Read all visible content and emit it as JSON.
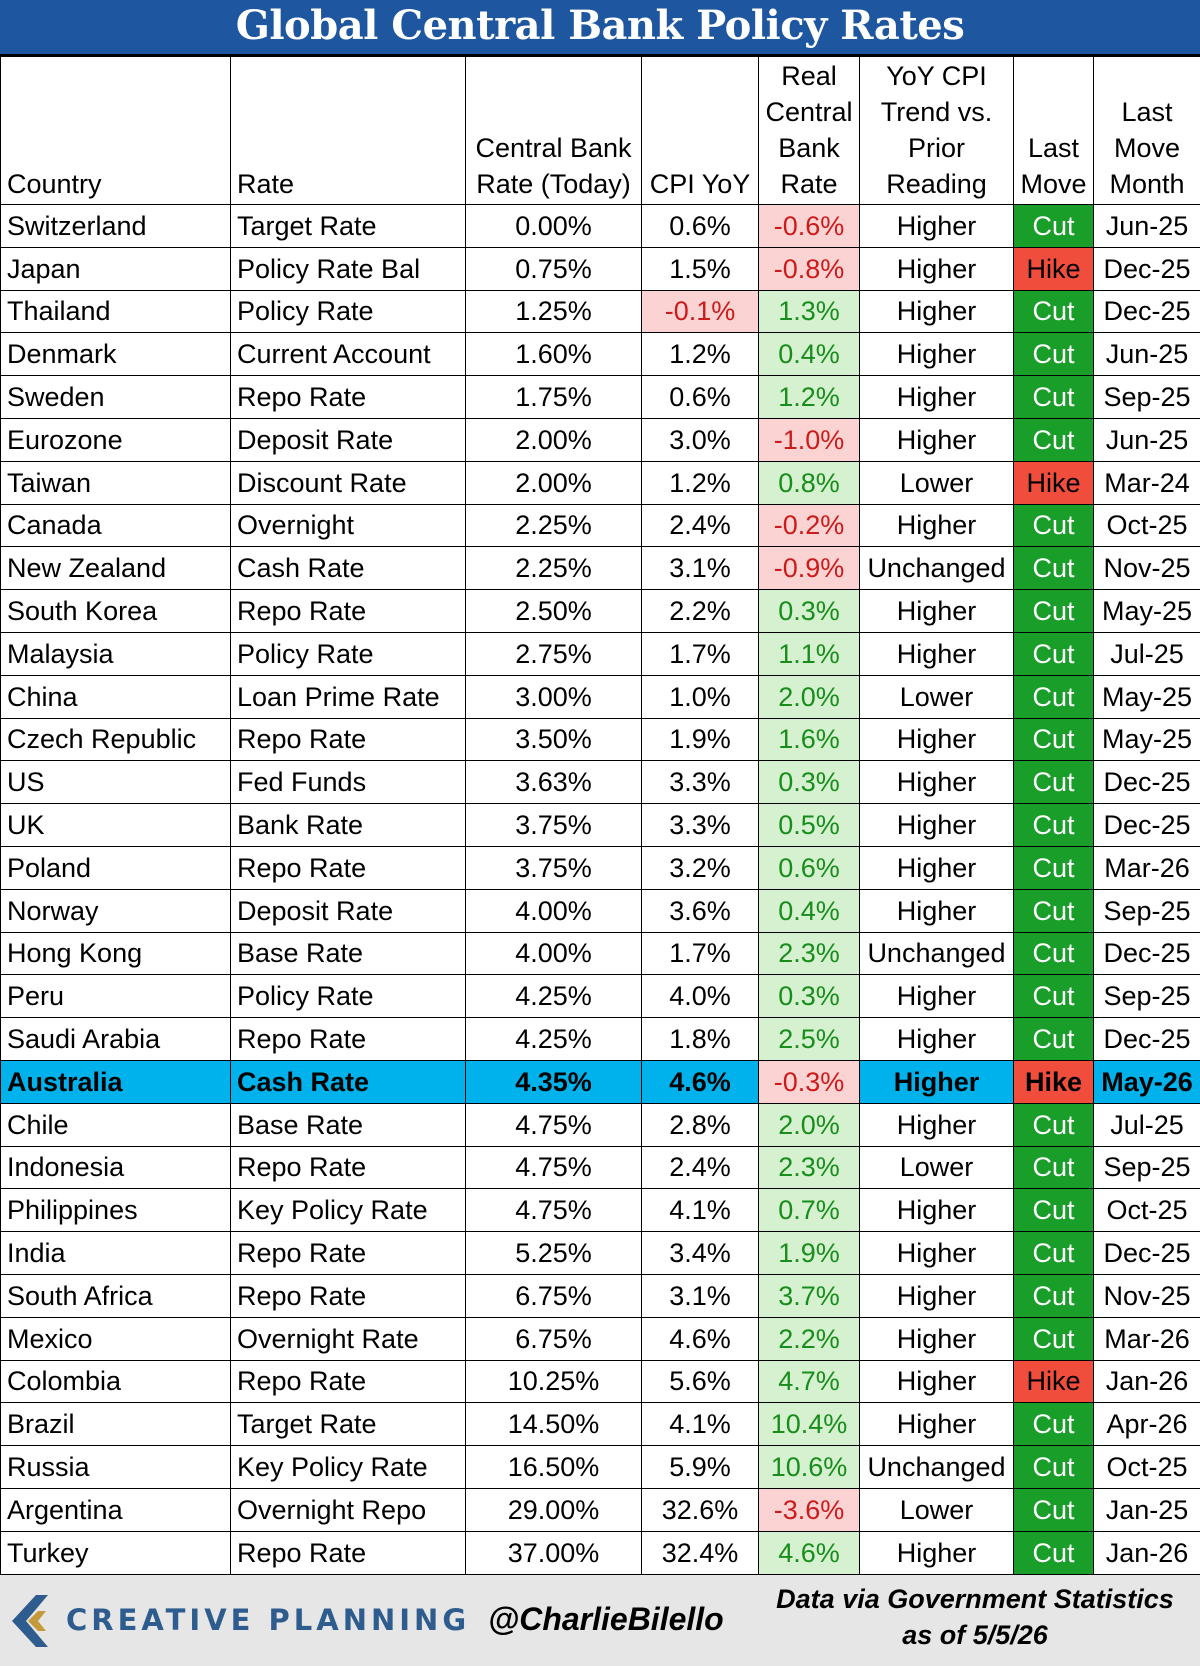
{
  "chart_data": {
    "type": "table",
    "title": "Global Central Bank Policy Rates",
    "columns": [
      "Country",
      "Rate",
      "Central Bank Rate (Today)",
      "CPI YoY",
      "Real Central Bank Rate",
      "YoY CPI Trend vs. Prior Reading",
      "Last Move",
      "Last Move Month"
    ],
    "highlight_country": "Australia",
    "colors": {
      "title_bg": "#1e57a0",
      "highlight_row": "#00b2eb",
      "negative_bg": "#fbd3d3",
      "negative_text": "#cc1b1b",
      "positive_bg": "#d5f1d0",
      "positive_text": "#198d1c",
      "cut": "#1a9e2a",
      "hike": "#f04d3d"
    },
    "rows": [
      {
        "country": "Switzerland",
        "rate": "Target Rate",
        "cb_rate": "0.00%",
        "cpi_yoy": "0.6%",
        "real_rate": "-0.6%",
        "trend": "Higher",
        "last_move": "Cut",
        "month": "Jun-25"
      },
      {
        "country": "Japan",
        "rate": "Policy Rate Bal",
        "cb_rate": "0.75%",
        "cpi_yoy": "1.5%",
        "real_rate": "-0.8%",
        "trend": "Higher",
        "last_move": "Hike",
        "month": "Dec-25"
      },
      {
        "country": "Thailand",
        "rate": "Policy Rate",
        "cb_rate": "1.25%",
        "cpi_yoy": "-0.1%",
        "real_rate": "1.3%",
        "trend": "Higher",
        "last_move": "Cut",
        "month": "Dec-25"
      },
      {
        "country": "Denmark",
        "rate": "Current Account",
        "cb_rate": "1.60%",
        "cpi_yoy": "1.2%",
        "real_rate": "0.4%",
        "trend": "Higher",
        "last_move": "Cut",
        "month": "Jun-25"
      },
      {
        "country": "Sweden",
        "rate": "Repo Rate",
        "cb_rate": "1.75%",
        "cpi_yoy": "0.6%",
        "real_rate": "1.2%",
        "trend": "Higher",
        "last_move": "Cut",
        "month": "Sep-25"
      },
      {
        "country": "Eurozone",
        "rate": "Deposit Rate",
        "cb_rate": "2.00%",
        "cpi_yoy": "3.0%",
        "real_rate": "-1.0%",
        "trend": "Higher",
        "last_move": "Cut",
        "month": "Jun-25"
      },
      {
        "country": "Taiwan",
        "rate": "Discount Rate",
        "cb_rate": "2.00%",
        "cpi_yoy": "1.2%",
        "real_rate": "0.8%",
        "trend": "Lower",
        "last_move": "Hike",
        "month": "Mar-24"
      },
      {
        "country": "Canada",
        "rate": "Overnight",
        "cb_rate": "2.25%",
        "cpi_yoy": "2.4%",
        "real_rate": "-0.2%",
        "trend": "Higher",
        "last_move": "Cut",
        "month": "Oct-25"
      },
      {
        "country": "New Zealand",
        "rate": "Cash Rate",
        "cb_rate": "2.25%",
        "cpi_yoy": "3.1%",
        "real_rate": "-0.9%",
        "trend": "Unchanged",
        "last_move": "Cut",
        "month": "Nov-25"
      },
      {
        "country": "South Korea",
        "rate": "Repo Rate",
        "cb_rate": "2.50%",
        "cpi_yoy": "2.2%",
        "real_rate": "0.3%",
        "trend": "Higher",
        "last_move": "Cut",
        "month": "May-25"
      },
      {
        "country": "Malaysia",
        "rate": "Policy Rate",
        "cb_rate": "2.75%",
        "cpi_yoy": "1.7%",
        "real_rate": "1.1%",
        "trend": "Higher",
        "last_move": "Cut",
        "month": "Jul-25"
      },
      {
        "country": "China",
        "rate": "Loan Prime Rate",
        "cb_rate": "3.00%",
        "cpi_yoy": "1.0%",
        "real_rate": "2.0%",
        "trend": "Lower",
        "last_move": "Cut",
        "month": "May-25"
      },
      {
        "country": "Czech Republic",
        "rate": "Repo Rate",
        "cb_rate": "3.50%",
        "cpi_yoy": "1.9%",
        "real_rate": "1.6%",
        "trend": "Higher",
        "last_move": "Cut",
        "month": "May-25"
      },
      {
        "country": "US",
        "rate": "Fed Funds",
        "cb_rate": "3.63%",
        "cpi_yoy": "3.3%",
        "real_rate": "0.3%",
        "trend": "Higher",
        "last_move": "Cut",
        "month": "Dec-25"
      },
      {
        "country": "UK",
        "rate": "Bank Rate",
        "cb_rate": "3.75%",
        "cpi_yoy": "3.3%",
        "real_rate": "0.5%",
        "trend": "Higher",
        "last_move": "Cut",
        "month": "Dec-25"
      },
      {
        "country": "Poland",
        "rate": "Repo Rate",
        "cb_rate": "3.75%",
        "cpi_yoy": "3.2%",
        "real_rate": "0.6%",
        "trend": "Higher",
        "last_move": "Cut",
        "month": "Mar-26"
      },
      {
        "country": "Norway",
        "rate": "Deposit Rate",
        "cb_rate": "4.00%",
        "cpi_yoy": "3.6%",
        "real_rate": "0.4%",
        "trend": "Higher",
        "last_move": "Cut",
        "month": "Sep-25"
      },
      {
        "country": "Hong Kong",
        "rate": "Base Rate",
        "cb_rate": "4.00%",
        "cpi_yoy": "1.7%",
        "real_rate": "2.3%",
        "trend": "Unchanged",
        "last_move": "Cut",
        "month": "Dec-25"
      },
      {
        "country": "Peru",
        "rate": "Policy Rate",
        "cb_rate": "4.25%",
        "cpi_yoy": "4.0%",
        "real_rate": "0.3%",
        "trend": "Higher",
        "last_move": "Cut",
        "month": "Sep-25"
      },
      {
        "country": "Saudi Arabia",
        "rate": "Repo Rate",
        "cb_rate": "4.25%",
        "cpi_yoy": "1.8%",
        "real_rate": "2.5%",
        "trend": "Higher",
        "last_move": "Cut",
        "month": "Dec-25"
      },
      {
        "country": "Australia",
        "rate": "Cash Rate",
        "cb_rate": "4.35%",
        "cpi_yoy": "4.6%",
        "real_rate": "-0.3%",
        "trend": "Higher",
        "last_move": "Hike",
        "month": "May-26"
      },
      {
        "country": "Chile",
        "rate": "Base Rate",
        "cb_rate": "4.75%",
        "cpi_yoy": "2.8%",
        "real_rate": "2.0%",
        "trend": "Higher",
        "last_move": "Cut",
        "month": "Jul-25"
      },
      {
        "country": "Indonesia",
        "rate": "Repo Rate",
        "cb_rate": "4.75%",
        "cpi_yoy": "2.4%",
        "real_rate": "2.3%",
        "trend": "Lower",
        "last_move": "Cut",
        "month": "Sep-25"
      },
      {
        "country": "Philippines",
        "rate": "Key Policy Rate",
        "cb_rate": "4.75%",
        "cpi_yoy": "4.1%",
        "real_rate": "0.7%",
        "trend": "Higher",
        "last_move": "Cut",
        "month": "Oct-25"
      },
      {
        "country": "India",
        "rate": "Repo Rate",
        "cb_rate": "5.25%",
        "cpi_yoy": "3.4%",
        "real_rate": "1.9%",
        "trend": "Higher",
        "last_move": "Cut",
        "month": "Dec-25"
      },
      {
        "country": "South Africa",
        "rate": "Repo Rate",
        "cb_rate": "6.75%",
        "cpi_yoy": "3.1%",
        "real_rate": "3.7%",
        "trend": "Higher",
        "last_move": "Cut",
        "month": "Nov-25"
      },
      {
        "country": "Mexico",
        "rate": "Overnight Rate",
        "cb_rate": "6.75%",
        "cpi_yoy": "4.6%",
        "real_rate": "2.2%",
        "trend": "Higher",
        "last_move": "Cut",
        "month": "Mar-26"
      },
      {
        "country": "Colombia",
        "rate": "Repo Rate",
        "cb_rate": "10.25%",
        "cpi_yoy": "5.6%",
        "real_rate": "4.7%",
        "trend": "Higher",
        "last_move": "Hike",
        "month": "Jan-26"
      },
      {
        "country": "Brazil",
        "rate": "Target Rate",
        "cb_rate": "14.50%",
        "cpi_yoy": "4.1%",
        "real_rate": "10.4%",
        "trend": "Higher",
        "last_move": "Cut",
        "month": "Apr-26"
      },
      {
        "country": "Russia",
        "rate": "Key Policy Rate",
        "cb_rate": "16.50%",
        "cpi_yoy": "5.9%",
        "real_rate": "10.6%",
        "trend": "Unchanged",
        "last_move": "Cut",
        "month": "Oct-25"
      },
      {
        "country": "Argentina",
        "rate": "Overnight Repo",
        "cb_rate": "29.00%",
        "cpi_yoy": "32.6%",
        "real_rate": "-3.6%",
        "trend": "Lower",
        "last_move": "Cut",
        "month": "Jan-25"
      },
      {
        "country": "Turkey",
        "rate": "Repo Rate",
        "cb_rate": "37.00%",
        "cpi_yoy": "32.4%",
        "real_rate": "4.6%",
        "trend": "Higher",
        "last_move": "Cut",
        "month": "Jan-26"
      }
    ]
  },
  "footer": {
    "logo_text": "CREATIVE PLANNING",
    "logo_icon": "creative-planning-c-logo",
    "handle": "@CharlieBilello",
    "source_line1": "Data via Government Statistics",
    "source_line2": "as of 5/5/26"
  }
}
